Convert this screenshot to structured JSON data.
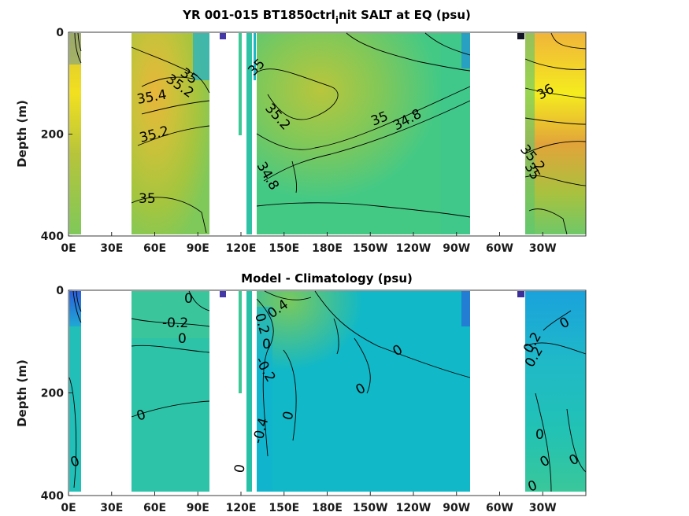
{
  "figure": {
    "title_main": "YR 001-015 BT1850ctrl",
    "title_sub": "i",
    "title_tail": "nit SALT at EQ (psu)"
  },
  "chart_data": [
    {
      "type": "heatmap",
      "title": "YR 001-015 BT1850ctrl_init SALT at EQ (psu)",
      "xlabel": "",
      "ylabel": "Depth (m)",
      "x_ticks": [
        "0E",
        "30E",
        "60E",
        "90E",
        "120E",
        "150E",
        "180E",
        "150W",
        "120W",
        "90W",
        "60W",
        "30W"
      ],
      "x_tick_values": [
        0,
        30,
        60,
        90,
        120,
        150,
        180,
        210,
        240,
        270,
        300,
        330
      ],
      "xlim": [
        0,
        360
      ],
      "y_ticks": [
        "0",
        "200",
        "400"
      ],
      "y_tick_values": [
        0,
        200,
        400
      ],
      "ylim": [
        400,
        0
      ],
      "contour_labels": [
        {
          "text": "35",
          "x": 55,
          "y": 70
        },
        {
          "text": "35.2",
          "x": 58,
          "y": 85
        },
        {
          "text": "35.4",
          "x": 42,
          "y": 125
        },
        {
          "text": "35.2",
          "x": 43,
          "y": 195
        },
        {
          "text": "35",
          "x": 39,
          "y": 320
        },
        {
          "text": "35",
          "x": 135,
          "y": 70
        },
        {
          "text": "35.2",
          "x": 147,
          "y": 150
        },
        {
          "text": "35",
          "x": 209,
          "y": 165
        },
        {
          "text": "34.8",
          "x": 229,
          "y": 150
        },
        {
          "text": "34.8",
          "x": 143,
          "y": 270
        },
        {
          "text": "36",
          "x": 341,
          "y": 115
        },
        {
          "text": "35.2",
          "x": 329,
          "y": 235
        },
        {
          "text": "35",
          "x": 325,
          "y": 265
        }
      ]
    },
    {
      "type": "heatmap",
      "title": "Model - Climatology (psu)",
      "xlabel": "",
      "ylabel": "Depth (m)",
      "x_ticks": [
        "0E",
        "30E",
        "60E",
        "90E",
        "120E",
        "150E",
        "180E",
        "150W",
        "120W",
        "90W",
        "60W",
        "30W"
      ],
      "x_tick_values": [
        0,
        30,
        60,
        90,
        120,
        150,
        180,
        210,
        240,
        270,
        300,
        330
      ],
      "xlim": [
        0,
        360
      ],
      "y_ticks": [
        "0",
        "200",
        "400"
      ],
      "y_tick_values": [
        0,
        200,
        400
      ],
      "ylim": [
        400,
        0
      ],
      "contour_labels": [
        {
          "text": "0",
          "x": 64,
          "y": 15
        },
        {
          "text": "-0.2",
          "x": 63,
          "y": 60
        },
        {
          "text": "0",
          "x": 64,
          "y": 90
        },
        {
          "text": "0",
          "x": 41,
          "y": 240
        },
        {
          "text": "0",
          "x": 4,
          "y": 330
        },
        {
          "text": "0",
          "x": 119,
          "y": 340
        },
        {
          "text": "0.2",
          "x": 132,
          "y": 55
        },
        {
          "text": "0.4",
          "x": 143,
          "y": 50
        },
        {
          "text": "0",
          "x": 133,
          "y": 100
        },
        {
          "text": "-0.2",
          "x": 133,
          "y": 165
        },
        {
          "text": "-0.4",
          "x": 134,
          "y": 280
        },
        {
          "text": "0",
          "x": 161,
          "y": 250
        },
        {
          "text": "0",
          "x": 196,
          "y": 120
        },
        {
          "text": "0",
          "x": 173,
          "y": 195
        },
        {
          "text": "0",
          "x": 337,
          "y": 70
        },
        {
          "text": "0.2",
          "x": 328,
          "y": 100
        },
        {
          "text": "0.2",
          "x": 323,
          "y": 130
        },
        {
          "text": "0",
          "x": 332,
          "y": 285
        },
        {
          "text": "0",
          "x": 323,
          "y": 335
        },
        {
          "text": "0",
          "x": 338,
          "y": 335
        },
        {
          "text": "0",
          "x": 333,
          "y": 385
        }
      ]
    }
  ]
}
